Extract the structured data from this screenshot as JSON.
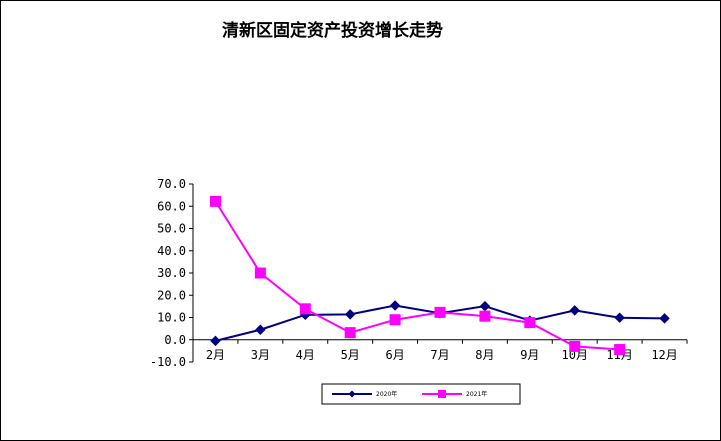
{
  "chart_data": {
    "type": "line",
    "title": "清新区固定资产投资增长走势",
    "xlabel": "",
    "ylabel": "",
    "categories": [
      "2月",
      "3月",
      "4月",
      "5月",
      "6月",
      "7月",
      "8月",
      "9月",
      "10月",
      "11月",
      "12月"
    ],
    "y_tick_labels": [
      "70.0",
      "60.0",
      "50.0",
      "40.0",
      "30.0",
      "20.0",
      "10.0",
      "0.0",
      "-10.0"
    ],
    "ylim": [
      -10,
      70
    ],
    "grid": false,
    "legend_position": "bottom",
    "series": [
      {
        "name": "2020年",
        "color": "#000080",
        "marker": "diamond",
        "values": [
          -0.5,
          4.5,
          11.2,
          11.4,
          15.4,
          11.9,
          15.1,
          8.6,
          13.2,
          9.9,
          9.6
        ]
      },
      {
        "name": "2021年",
        "color": "#FF00FF",
        "marker": "square",
        "values": [
          62.2,
          30.0,
          13.9,
          3.2,
          9.0,
          12.3,
          10.6,
          7.7,
          -3.0,
          -4.4,
          null
        ]
      }
    ]
  }
}
